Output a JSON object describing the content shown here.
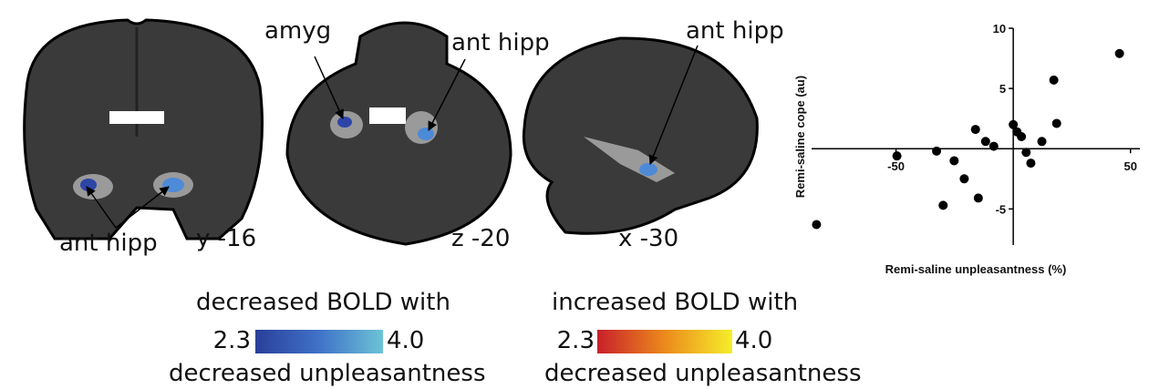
{
  "panels": [
    {
      "labels": [
        "ant hipp"
      ],
      "slice": "y -16"
    },
    {
      "labels": [
        "amyg",
        "ant hipp"
      ],
      "slice": "z -20"
    },
    {
      "labels": [
        "ant hipp"
      ],
      "slice": "x -30"
    }
  ],
  "colorbars": [
    {
      "title": "decreased BOLD with",
      "min": "2.3",
      "max": "4.0",
      "caption": "decreased unpleasantness"
    },
    {
      "title": "increased BOLD with",
      "min": "2.3",
      "max": "4.0",
      "caption": "decreased unpleasantness"
    }
  ],
  "chart_data": {
    "type": "scatter",
    "x_label": "Remi-saline unpleasantness (%)",
    "y_label": "Remi-saline cope (au)",
    "x": [
      -83.9,
      -49.6,
      -32.7,
      -29.9,
      -25.2,
      -20.9,
      -16.1,
      -14.9,
      -11.8,
      -8.3,
      0,
      1.6,
      3.5,
      5.5,
      7.5,
      12.2,
      17.3,
      18.5,
      45.3
    ],
    "values": [
      -6.3,
      -0.6,
      -0.2,
      -4.7,
      -1.0,
      -2.5,
      1.6,
      -4.1,
      0.6,
      0.2,
      2.0,
      1.4,
      1.0,
      -0.3,
      -1.2,
      0.6,
      5.7,
      2.1,
      7.9
    ],
    "color": "#000000",
    "xlim": [
      -86,
      54
    ],
    "ylim": [
      -8,
      10
    ],
    "xticks": [
      -50,
      50
    ],
    "yticks": [
      -5,
      5,
      10
    ]
  }
}
